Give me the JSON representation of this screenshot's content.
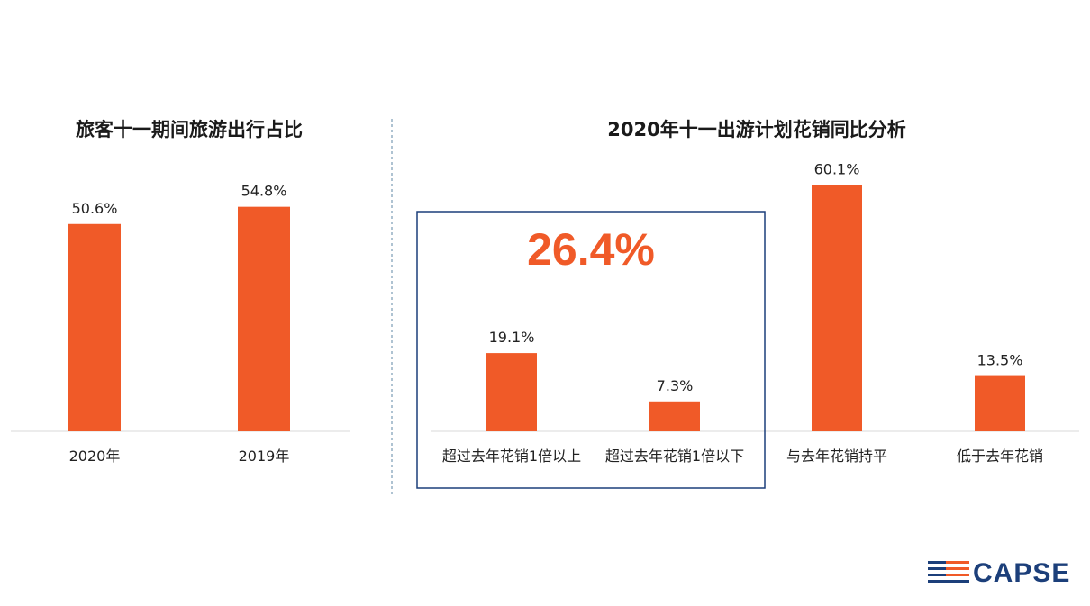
{
  "chart_data": [
    {
      "type": "bar",
      "title": "旅客十一期间旅游出行占比",
      "categories": [
        "2020年",
        "2019年"
      ],
      "values": [
        50.6,
        54.8
      ],
      "value_labels": [
        "50.6%",
        "54.8%"
      ],
      "ylim": [
        0,
        100
      ],
      "grid": false,
      "color": "#f05a28"
    },
    {
      "type": "bar",
      "title": "2020年十一出游计划花销同比分析",
      "categories": [
        "超过去年花销1倍以上",
        "超过去年花销1倍以下",
        "与去年花销持平",
        "低于去年花销"
      ],
      "values": [
        19.1,
        7.3,
        60.1,
        13.5
      ],
      "value_labels": [
        "19.1%",
        "7.3%",
        "60.1%",
        "13.5%"
      ],
      "ylim": [
        0,
        100
      ],
      "grid": false,
      "color": "#f05a28",
      "annotation": {
        "text": "26.4%",
        "box_categories": [
          "超过去年花销1倍以上",
          "超过去年花销1倍以下"
        ]
      }
    }
  ],
  "logo": {
    "text": "CAPSE"
  },
  "colors": {
    "bar": "#f05a28",
    "box": "#1c3f7a",
    "divider": "#7a9bb5",
    "axis": "#d9d9d9"
  }
}
